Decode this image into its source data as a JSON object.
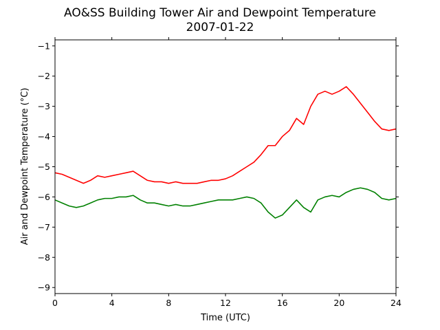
{
  "chart_data": {
    "type": "line",
    "title": "AO&SS Building Tower Air and Dewpoint Temperature",
    "subtitle": "2007-01-22",
    "xlabel": "Time (UTC)",
    "ylabel": "Air and Dewpoint Temperature (°C)",
    "xlim": [
      0,
      24
    ],
    "ylim": [
      -9.2,
      -0.8
    ],
    "xticks": [
      0,
      4,
      8,
      12,
      16,
      20,
      24
    ],
    "yticks": [
      -9,
      -8,
      -7,
      -6,
      -5,
      -4,
      -3,
      -2,
      -1
    ],
    "grid": false,
    "legend": "none",
    "series": [
      {
        "color": "#ff0000",
        "x": [
          0,
          0.5,
          1,
          1.5,
          2,
          2.5,
          3,
          3.5,
          4,
          4.5,
          5,
          5.5,
          6,
          6.5,
          7,
          7.5,
          8,
          8.5,
          9,
          9.5,
          10,
          10.5,
          11,
          11.5,
          12,
          12.5,
          13,
          13.5,
          14,
          14.5,
          15,
          15.5,
          16,
          16.5,
          17,
          17.5,
          18,
          18.5,
          19,
          19.5,
          20,
          20.5,
          21,
          21.5,
          22,
          22.5,
          23,
          23.5,
          24
        ],
        "values": [
          -5.2,
          -5.25,
          -5.35,
          -5.45,
          -5.55,
          -5.45,
          -5.3,
          -5.35,
          -5.3,
          -5.25,
          -5.2,
          -5.15,
          -5.3,
          -5.45,
          -5.5,
          -5.5,
          -5.55,
          -5.5,
          -5.55,
          -5.55,
          -5.55,
          -5.5,
          -5.45,
          -5.45,
          -5.4,
          -5.3,
          -5.15,
          -5.0,
          -4.85,
          -4.6,
          -4.3,
          -4.3,
          -4.0,
          -3.8,
          -3.4,
          -3.6,
          -3.0,
          -2.6,
          -2.5,
          -2.6,
          -2.5,
          -2.35,
          -2.6,
          -2.9,
          -3.2,
          -3.5,
          -3.75,
          -3.8,
          -3.75
        ]
      },
      {
        "color": "#008000",
        "x": [
          0,
          0.5,
          1,
          1.5,
          2,
          2.5,
          3,
          3.5,
          4,
          4.5,
          5,
          5.5,
          6,
          6.5,
          7,
          7.5,
          8,
          8.5,
          9,
          9.5,
          10,
          10.5,
          11,
          11.5,
          12,
          12.5,
          13,
          13.5,
          14,
          14.5,
          15,
          15.5,
          16,
          16.5,
          17,
          17.5,
          18,
          18.5,
          19,
          19.5,
          20,
          20.5,
          21,
          21.5,
          22,
          22.5,
          23,
          23.5,
          24
        ],
        "values": [
          -6.1,
          -6.2,
          -6.3,
          -6.35,
          -6.3,
          -6.2,
          -6.1,
          -6.05,
          -6.05,
          -6.0,
          -6.0,
          -5.95,
          -6.1,
          -6.2,
          -6.2,
          -6.25,
          -6.3,
          -6.25,
          -6.3,
          -6.3,
          -6.25,
          -6.2,
          -6.15,
          -6.1,
          -6.1,
          -6.1,
          -6.05,
          -6.0,
          -6.05,
          -6.2,
          -6.5,
          -6.7,
          -6.6,
          -6.35,
          -6.1,
          -6.35,
          -6.5,
          -6.1,
          -6.0,
          -5.95,
          -6.0,
          -5.85,
          -5.75,
          -5.7,
          -5.75,
          -5.85,
          -6.05,
          -6.1,
          -6.05
        ]
      }
    ]
  }
}
